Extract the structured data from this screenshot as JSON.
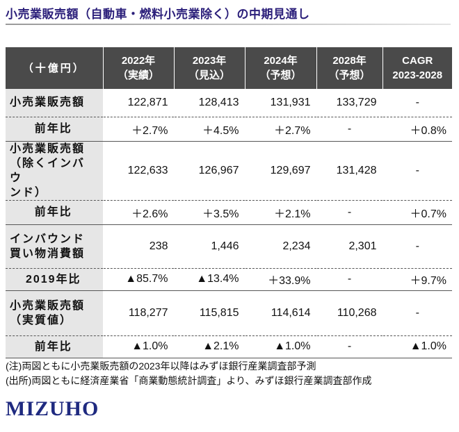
{
  "header": {
    "title": "小売業販売額（自動車・燃料小売業除く）の中期見通し"
  },
  "table": {
    "columns": [
      [
        "（十億円）"
      ],
      [
        "2022年",
        "（実績）"
      ],
      [
        "2023年",
        "（見込）"
      ],
      [
        "2024年",
        "（予想）"
      ],
      [
        "2028年",
        "（予想）"
      ],
      [
        "CAGR",
        "2023-2028"
      ]
    ],
    "rows": [
      {
        "label": [
          "小売業販売額"
        ],
        "cells": [
          "122,871",
          "128,413",
          "131,931",
          "133,729",
          "-"
        ]
      },
      {
        "label": [
          "前年比"
        ],
        "cells": [
          "＋2.7%",
          "＋4.5%",
          "＋2.7%",
          "-",
          "＋0.8%"
        ]
      },
      {
        "label": [
          "小売業販売額",
          "（除くインバウ",
          "ンド）"
        ],
        "cells": [
          "122,633",
          "126,967",
          "129,697",
          "131,428",
          "-"
        ]
      },
      {
        "label": [
          "前年比"
        ],
        "cells": [
          "＋2.6%",
          "＋3.5%",
          "＋2.1%",
          "-",
          "＋0.7%"
        ]
      },
      {
        "label": [
          "インバウンド",
          "買い物消費額"
        ],
        "cells": [
          "238",
          "1,446",
          "2,234",
          "2,301",
          "-"
        ]
      },
      {
        "label": [
          "2019年比"
        ],
        "cells": [
          "▲85.7%",
          "▲13.4%",
          "＋33.9%",
          "-",
          "＋9.7%"
        ]
      },
      {
        "label": [
          "小売業販売額",
          "（実質値）"
        ],
        "cells": [
          "118,277",
          "115,815",
          "114,614",
          "110,268",
          "-"
        ]
      },
      {
        "label": [
          "前年比"
        ],
        "cells": [
          "▲1.0%",
          "▲2.1%",
          "▲1.0%",
          "-",
          "▲1.0%"
        ]
      }
    ]
  },
  "notes": [
    "(注)両図ともに小売業販売額の2023年以降はみずほ銀行産業調査部予測",
    "(出所)両図ともに経済産業省「商業動態統計調査」より、みずほ銀行産業調査部作成"
  ],
  "logo": "MIZUHO"
}
